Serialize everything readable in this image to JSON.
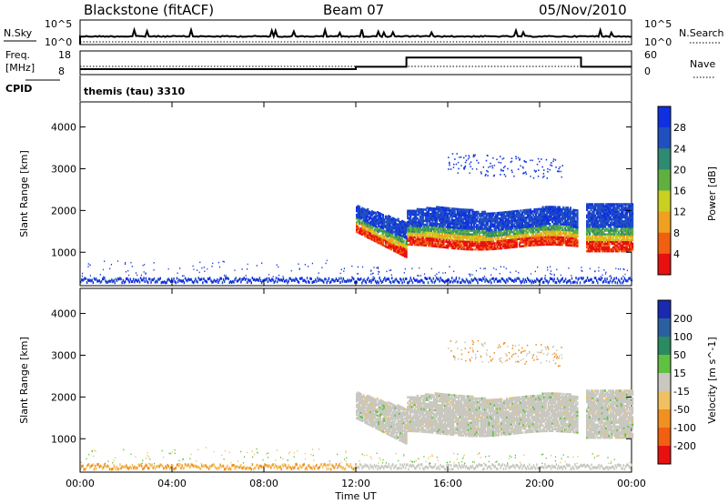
{
  "header": {
    "title": "Blackstone (fitACF)",
    "beam": "Beam 07",
    "date": "05/Nov/2010"
  },
  "panels": {
    "nsky": {
      "label": "N.Sky",
      "ticks_left": [
        "10^5",
        "10^0"
      ],
      "ticks_right": [
        "10^5",
        "10^0"
      ],
      "right_label": "N.Search"
    },
    "freq": {
      "label_line1": "Freq.",
      "label_line2": "[MHz]",
      "ticks_left": [
        "18",
        "8"
      ],
      "ticks_right": [
        "60",
        "0"
      ],
      "right_label": "Nave",
      "solid_level_mhz_segments": [
        {
          "t0": 0,
          "t1": 12.0,
          "v": 10.3
        },
        {
          "t0": 12.0,
          "t1": 14.2,
          "v": 11.3
        },
        {
          "t0": 14.2,
          "t1": 21.8,
          "v": 15.2
        },
        {
          "t0": 21.8,
          "t1": 24.0,
          "v": 11.3
        }
      ]
    },
    "cpid": {
      "label": "CPID",
      "text": "themis (tau) 3310"
    }
  },
  "chart_data": [
    {
      "type": "heatmap",
      "name": "power",
      "ylabel": "Slant Range [km]",
      "ylim": [
        200,
        4600
      ],
      "y_ticks": [
        1000,
        2000,
        3000,
        4000
      ],
      "colorbar_label": "Power [dB]",
      "colorbar_ticks": [
        "28",
        "24",
        "20",
        "16",
        "12",
        "8",
        "4"
      ],
      "colorscale": [
        "#1030e0",
        "#2050c0",
        "#2e8a70",
        "#60b040",
        "#c8d020",
        "#f0a020",
        "#f06010",
        "#e81010"
      ]
    },
    {
      "type": "heatmap",
      "name": "velocity",
      "xlabel": "Time UT",
      "ylabel": "Slant Range [km]",
      "ylim": [
        200,
        4600
      ],
      "y_ticks": [
        1000,
        2000,
        3000,
        4000
      ],
      "x_ticks": [
        "00:00",
        "04:00",
        "08:00",
        "12:00",
        "16:00",
        "20:00",
        "00:00"
      ],
      "colorbar_label": "Velocity [m s^-1]",
      "colorbar_ticks": [
        "200",
        "100",
        "50",
        "15",
        "-15",
        "-50",
        "-100",
        "-200"
      ],
      "colorscale": [
        "#1a2ab0",
        "#2a60a0",
        "#2a8a60",
        "#60c040",
        "#c8c8c0",
        "#f0c060",
        "#f09020",
        "#f06010",
        "#e81010"
      ]
    }
  ],
  "colors": {
    "scatter_gray": "#c8c8c0",
    "frame": "#000000"
  }
}
